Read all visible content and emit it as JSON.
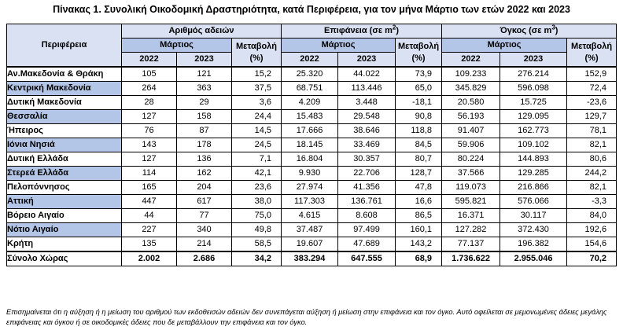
{
  "title": "Πίνακας 1. Συνολική Οικοδομική Δραστηριότητα, κατά  Περιφέρεια, για τον μήνα Μάρτιο των ετών 2022 και 2023",
  "headers": {
    "region": "Περιφέρεια",
    "permits": "Αριθμός αδειών",
    "area": "Επιφάνεια (σε m",
    "area_sup": "2",
    "area_close": ")",
    "volume": "Όγκος (σε m",
    "volume_sup": "3",
    "volume_close": ")",
    "month": "Μάρτιος",
    "change": "Μεταβολή",
    "change_unit": "(%)",
    "y2022": "2022",
    "y2023": "2023"
  },
  "rows": [
    {
      "region": "Αν.Μακεδονία & Θράκη",
      "p22": "105",
      "p23": "121",
      "pch": "15,2",
      "a22": "25.320",
      "a23": "44.022",
      "ach": "73,9",
      "v22": "109.233",
      "v23": "276.214",
      "vch": "152,9"
    },
    {
      "region": "Κεντρική Μακεδονία",
      "p22": "264",
      "p23": "363",
      "pch": "37,5",
      "a22": "68.751",
      "a23": "113.446",
      "ach": "65,0",
      "v22": "345.829",
      "v23": "596.098",
      "vch": "72,4"
    },
    {
      "region": "Δυτική Μακεδονία",
      "p22": "28",
      "p23": "29",
      "pch": "3,6",
      "a22": "4.209",
      "a23": "3.448",
      "ach": "-18,1",
      "v22": "20.580",
      "v23": "15.725",
      "vch": "-23,6"
    },
    {
      "region": "Θεσσαλία",
      "p22": "127",
      "p23": "158",
      "pch": "24,4",
      "a22": "15.483",
      "a23": "29.548",
      "ach": "90,8",
      "v22": "56.193",
      "v23": "129.095",
      "vch": "129,7"
    },
    {
      "region": "Ήπειρος",
      "p22": "76",
      "p23": "87",
      "pch": "14,5",
      "a22": "17.666",
      "a23": "38.646",
      "ach": "118,8",
      "v22": "91.407",
      "v23": "162.773",
      "vch": "78,1"
    },
    {
      "region": "Ιόνια Νησιά",
      "p22": "143",
      "p23": "178",
      "pch": "24,5",
      "a22": "18.145",
      "a23": "33.469",
      "ach": "84,5",
      "v22": "59.906",
      "v23": "109.102",
      "vch": "82,1"
    },
    {
      "region": "Δυτική Ελλάδα",
      "p22": "127",
      "p23": "136",
      "pch": "7,1",
      "a22": "16.804",
      "a23": "30.357",
      "ach": "80,7",
      "v22": "80.224",
      "v23": "144.893",
      "vch": "80,6"
    },
    {
      "region": "Στερεά Ελλάδα",
      "p22": "114",
      "p23": "162",
      "pch": "42,1",
      "a22": "9.930",
      "a23": "22.706",
      "ach": "128,7",
      "v22": "37.566",
      "v23": "129.285",
      "vch": "244,2"
    },
    {
      "region": "Πελοπόννησος",
      "p22": "165",
      "p23": "204",
      "pch": "23,6",
      "a22": "27.974",
      "a23": "41.356",
      "ach": "47,8",
      "v22": "119.073",
      "v23": "216.866",
      "vch": "82,1"
    },
    {
      "region": "Αττική",
      "p22": "447",
      "p23": "617",
      "pch": "38,0",
      "a22": "117.303",
      "a23": "136.761",
      "ach": "16,6",
      "v22": "595.821",
      "v23": "576.066",
      "vch": "-3,3"
    },
    {
      "region": "Βόρειο Αιγαίο",
      "p22": "44",
      "p23": "77",
      "pch": "75,0",
      "a22": "4.615",
      "a23": "8.608",
      "ach": "86,5",
      "v22": "16.371",
      "v23": "30.117",
      "vch": "84,0"
    },
    {
      "region": "Νότιο Αιγαίο",
      "p22": "227",
      "p23": "340",
      "pch": "49,8",
      "a22": "37.487",
      "a23": "97.499",
      "ach": "160,1",
      "v22": "127.282",
      "v23": "372.430",
      "vch": "192,6"
    },
    {
      "region": "Κρήτη",
      "p22": "135",
      "p23": "214",
      "pch": "58,5",
      "a22": "19.607",
      "a23": "47.689",
      "ach": "143,2",
      "v22": "77.137",
      "v23": "196.382",
      "vch": "154,6"
    }
  ],
  "total": {
    "region": "Σύνολο Χώρας",
    "p22": "2.002",
    "p23": "2.686",
    "pch": "34,2",
    "a22": "383.294",
    "a23": "647.555",
    "ach": "68,9",
    "v22": "1.736.622",
    "v23": "2.955.046",
    "vch": "70,2"
  },
  "note": "Επισημαίνεται ότι η αύξηση ή η μείωση του αριθμού των εκδοθεισών αδειών δεν συνεπάγεται αύξηση ή μείωση στην επιφάνεια και τον όγκο. Αυτό οφείλεται σε μεμονωμένες άδειες μεγάλης επιφάνειας και όγκου ή σε οικοδομικές άδειες που δε μεταβάλλουν την επιφάνεια και τον όγκο."
}
